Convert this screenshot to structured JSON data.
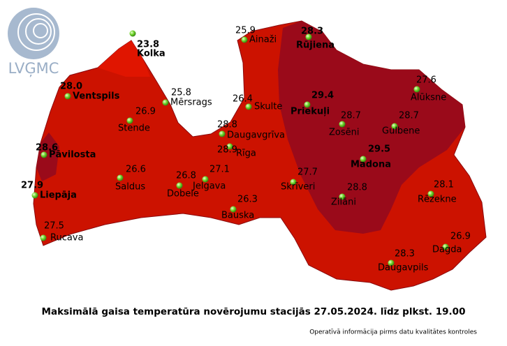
{
  "logo": "LVĢMC",
  "stations": [
    {
      "name": "Kolka",
      "value": "23.8"
    },
    {
      "name": "Ainaži",
      "value": "25.9"
    },
    {
      "name": "Rūjiena",
      "value": "28.3"
    },
    {
      "name": "Ventspils",
      "value": "28.0"
    },
    {
      "name": "Mērsrags",
      "value": "25.8"
    },
    {
      "name": "Skulte",
      "value": "26.4"
    },
    {
      "name": "Priekuļi",
      "value": "29.4"
    },
    {
      "name": "Alūksne",
      "value": "27.6"
    },
    {
      "name": "Zosēni",
      "value": "28.7"
    },
    {
      "name": "Gulbene",
      "value": "28.7"
    },
    {
      "name": "Stende",
      "value": "26.9"
    },
    {
      "name": "Daugavgrīva",
      "value": "28.8"
    },
    {
      "name": "Rīga",
      "value": "28.9"
    },
    {
      "name": "Pāvilosta",
      "value": "28.6"
    },
    {
      "name": "Madona",
      "value": "29.5"
    },
    {
      "name": "Saldus",
      "value": "26.6"
    },
    {
      "name": "Dobele",
      "value": "26.8"
    },
    {
      "name": "Jelgava",
      "value": "27.1"
    },
    {
      "name": "Skrīveri",
      "value": "27.7"
    },
    {
      "name": "Zilāni",
      "value": "28.8"
    },
    {
      "name": "Rēzekne",
      "value": "28.1"
    },
    {
      "name": "Liepāja",
      "value": "27.9"
    },
    {
      "name": "Bauska",
      "value": "26.3"
    },
    {
      "name": "Rucava",
      "value": "27.5"
    },
    {
      "name": "Dagda",
      "value": "26.9"
    },
    {
      "name": "Daugavpils",
      "value": "28.3"
    }
  ],
  "caption": "Maksimālā gaisa temperatūra novērojumu stacijās 27.05.2024. līdz plkst. 19.00",
  "note": "Operatīvā informācija pirms datu kvalitātes kontroles"
}
